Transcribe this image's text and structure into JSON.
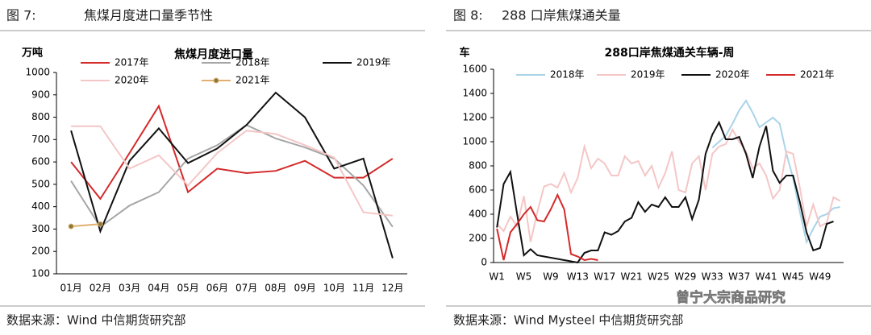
{
  "panels": [
    {
      "caption": "图 7:",
      "heading": "焦煤月度进口量季节性",
      "source": "数据来源：Wind  中信期货研究部"
    },
    {
      "caption": "图 8:",
      "heading": "288 口岸焦煤通关量",
      "source": "数据来源：Wind Mysteel  中信期货研究部"
    }
  ],
  "watermark": "曾宁大宗商品研究",
  "chart_data": [
    {
      "type": "line",
      "title": "焦煤月度进口量",
      "y_label": "万吨",
      "categories": [
        "01月",
        "02月",
        "03月",
        "04月",
        "05月",
        "06月",
        "07月",
        "08月",
        "09月",
        "10月",
        "11月",
        "12月"
      ],
      "series": [
        {
          "name": "2017年",
          "color": "#d42a2a",
          "values": [
            600,
            435,
            640,
            850,
            465,
            570,
            550,
            560,
            605,
            530,
            530,
            615
          ]
        },
        {
          "name": "2018年",
          "color": "#a6a6a6",
          "values": [
            515,
            310,
            405,
            465,
            615,
            675,
            765,
            705,
            665,
            615,
            495,
            310
          ]
        },
        {
          "name": "2019年",
          "color": "#111111",
          "values": [
            740,
            290,
            605,
            750,
            595,
            660,
            765,
            910,
            800,
            570,
            615,
            170
          ]
        },
        {
          "name": "2020年",
          "color": "#f5c6c6",
          "values": [
            760,
            760,
            570,
            630,
            495,
            640,
            740,
            725,
            675,
            620,
            375,
            360
          ]
        },
        {
          "name": "2021年",
          "color": "#e0b070",
          "marker": "circle",
          "values": [
            312,
            322,
            null,
            null,
            null,
            null,
            null,
            null,
            null,
            null,
            null,
            null
          ]
        }
      ],
      "ylim": [
        100,
        1000
      ],
      "yticks": [
        100,
        200,
        300,
        400,
        500,
        600,
        700,
        800,
        900,
        1000
      ]
    },
    {
      "type": "line",
      "title": "288口岸焦煤通关车辆-周",
      "y_label": "车",
      "categories": [
        "W1",
        null,
        null,
        null,
        "W5",
        null,
        null,
        null,
        "W9",
        null,
        null,
        null,
        "W13",
        null,
        null,
        null,
        "W17",
        null,
        null,
        null,
        "W21",
        null,
        null,
        null,
        "W25",
        null,
        null,
        null,
        "W29",
        null,
        null,
        null,
        "W33",
        null,
        null,
        null,
        "W37",
        null,
        null,
        null,
        "W41",
        null,
        null,
        null,
        "W45",
        null,
        null,
        null,
        "W49",
        null,
        null,
        null
      ],
      "series": [
        {
          "name": "2018年",
          "color": "#a9d4e8",
          "values": [
            null,
            null,
            null,
            null,
            null,
            null,
            null,
            null,
            null,
            null,
            null,
            null,
            null,
            null,
            null,
            null,
            null,
            null,
            null,
            null,
            null,
            null,
            null,
            null,
            null,
            null,
            null,
            null,
            null,
            null,
            null,
            null,
            950,
            1000,
            1050,
            1150,
            1260,
            1340,
            1240,
            1120,
            1160,
            1200,
            1150,
            900,
            700,
            420,
            170,
            280,
            380,
            400,
            450,
            460
          ]
        },
        {
          "name": "2019年",
          "color": "#f5c6c6",
          "values": [
            320,
            260,
            380,
            300,
            550,
            170,
            420,
            630,
            650,
            620,
            740,
            580,
            700,
            960,
            780,
            860,
            820,
            720,
            720,
            880,
            820,
            840,
            720,
            800,
            620,
            740,
            920,
            600,
            580,
            820,
            880,
            600,
            900,
            960,
            980,
            1100,
            1000,
            920,
            780,
            820,
            720,
            530,
            600,
            920,
            900,
            620,
            300,
            480,
            300,
            330,
            540,
            510
          ]
        },
        {
          "name": "2020年",
          "color": "#111111",
          "values": [
            290,
            650,
            750,
            400,
            60,
            110,
            60,
            50,
            40,
            30,
            20,
            10,
            0,
            80,
            100,
            100,
            250,
            230,
            260,
            340,
            370,
            500,
            420,
            480,
            460,
            540,
            460,
            460,
            540,
            360,
            520,
            900,
            1060,
            1160,
            1020,
            1020,
            1040,
            900,
            700,
            960,
            1130,
            760,
            660,
            720,
            720,
            500,
            250,
            100,
            120,
            320,
            340,
            null
          ]
        },
        {
          "name": "2021年",
          "color": "#d42a2a",
          "values": [
            280,
            20,
            250,
            320,
            400,
            460,
            350,
            340,
            440,
            560,
            440,
            70,
            50,
            20,
            30,
            20,
            null,
            null,
            null,
            null,
            null,
            null,
            null,
            null,
            null,
            null,
            null,
            null,
            null,
            null,
            null,
            null,
            null,
            null,
            null,
            null,
            null,
            null,
            null,
            null,
            null,
            null,
            null,
            null,
            null,
            null,
            null,
            null,
            null,
            null,
            null,
            null
          ]
        }
      ],
      "ylim": [
        0,
        1600
      ],
      "yticks": [
        0,
        200,
        400,
        600,
        800,
        1000,
        1200,
        1400,
        1600
      ]
    }
  ]
}
